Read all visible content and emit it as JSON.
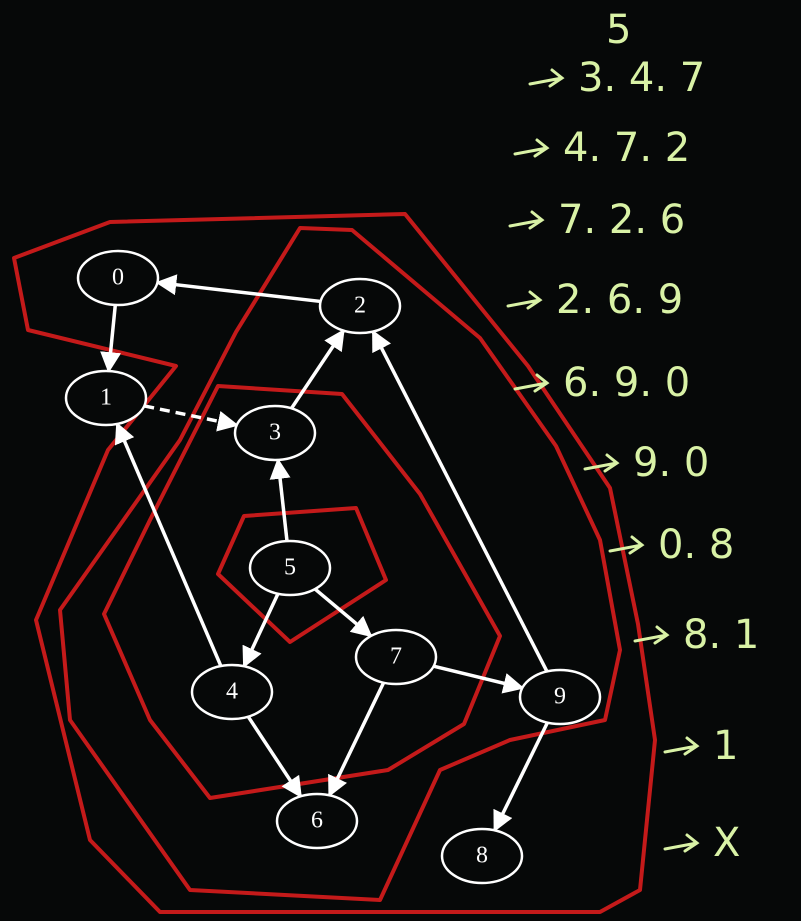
{
  "nodes": [
    {
      "label": "0"
    },
    {
      "label": "1"
    },
    {
      "label": "2"
    },
    {
      "label": "3"
    },
    {
      "label": "4"
    },
    {
      "label": "5"
    },
    {
      "label": "6"
    },
    {
      "label": "7"
    },
    {
      "label": "8"
    },
    {
      "label": "9"
    }
  ],
  "queue": {
    "start": "5",
    "rows": [
      "3. 4. 7",
      "4. 7. 2",
      "7. 2. 6",
      "2. 6. 9",
      "6. 9. 0",
      "9. 0",
      "0. 8",
      "8. 1",
      "1",
      "X"
    ]
  }
}
